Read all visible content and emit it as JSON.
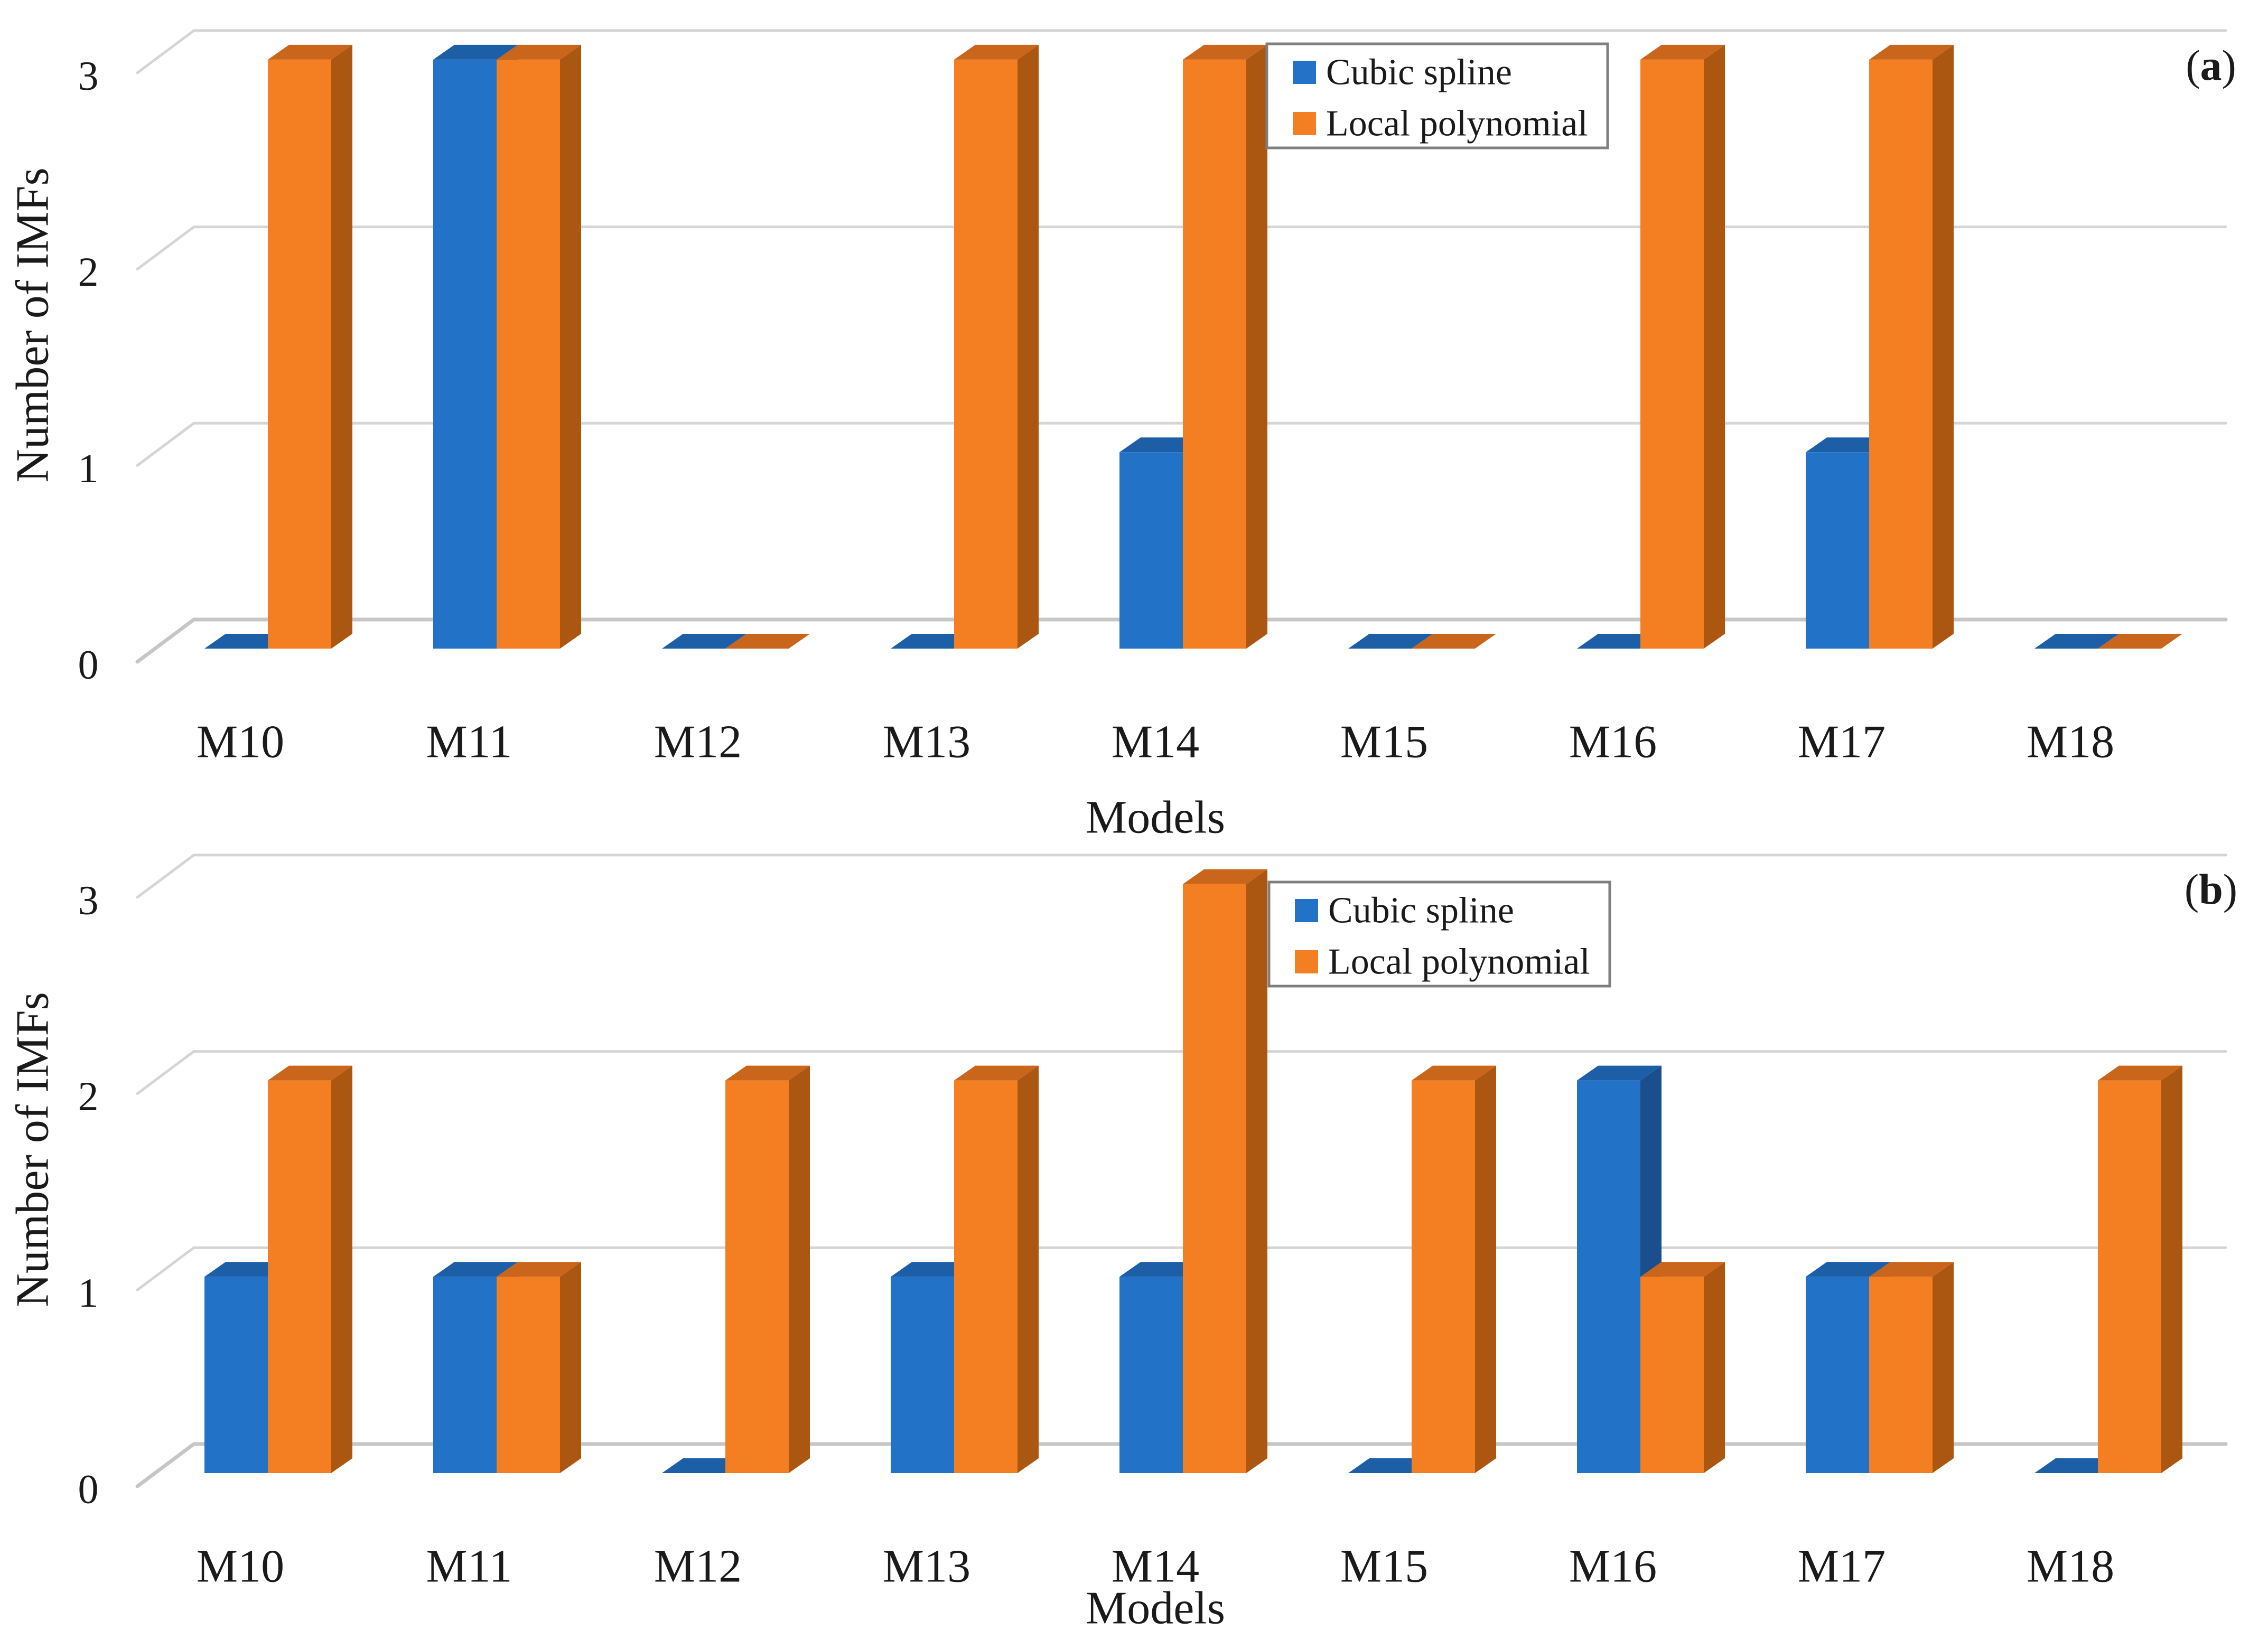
{
  "figure": {
    "y_axis_label": "Number of IMFs",
    "x_axis_label": "Models",
    "legend_labels": [
      "Cubic spline",
      "Local polynomial"
    ],
    "panel_tags": [
      "(a)",
      "(b)"
    ]
  },
  "colors": {
    "series1_front": "#2272C8",
    "series1_top": "#1C5FA6",
    "series1_side": "#1A4E8D",
    "series2_front": "#F47E22",
    "series2_top": "#C9661B",
    "series2_side": "#AC5711",
    "gridline": "#D5D5D5",
    "zero_gridline": "#C6C6C6",
    "tick_line": "#D0D0D0",
    "legend_border": "#7F7F7F",
    "legend_fill": "#FFFFFF",
    "text": "#1A1A1A",
    "background": "#FFFFFF"
  },
  "chart_data": [
    {
      "type": "bar",
      "style": "3d-clustered-column",
      "panel_label": "(a)",
      "title": "",
      "xlabel": "Models",
      "ylabel": "Number of IMFs",
      "categories": [
        "M10",
        "M11",
        "M12",
        "M13",
        "M14",
        "M15",
        "M16",
        "M17",
        "M18"
      ],
      "series": [
        {
          "name": "Cubic spline",
          "values": [
            0,
            3,
            0,
            0,
            1,
            0,
            0,
            1,
            0
          ]
        },
        {
          "name": "Local polynomial",
          "values": [
            3,
            3,
            0,
            3,
            3,
            0,
            3,
            3,
            0
          ]
        }
      ],
      "yticks": [
        0,
        1,
        2,
        3
      ],
      "ylim": [
        0,
        3
      ],
      "grid": true,
      "legend_position": "top-right-inside"
    },
    {
      "type": "bar",
      "style": "3d-clustered-column",
      "panel_label": "(b)",
      "title": "",
      "xlabel": "Models",
      "ylabel": "Number of IMFs",
      "categories": [
        "M10",
        "M11",
        "M12",
        "M13",
        "M14",
        "M15",
        "M16",
        "M17",
        "M18"
      ],
      "series": [
        {
          "name": "Cubic spline",
          "values": [
            1,
            1,
            0,
            1,
            1,
            0,
            2,
            1,
            0
          ]
        },
        {
          "name": "Local polynomial",
          "values": [
            2,
            1,
            2,
            2,
            3,
            2,
            1,
            1,
            2
          ]
        }
      ],
      "yticks": [
        0,
        1,
        2,
        3
      ],
      "ylim": [
        0,
        3
      ],
      "grid": true,
      "legend_position": "top-right-inside"
    }
  ]
}
